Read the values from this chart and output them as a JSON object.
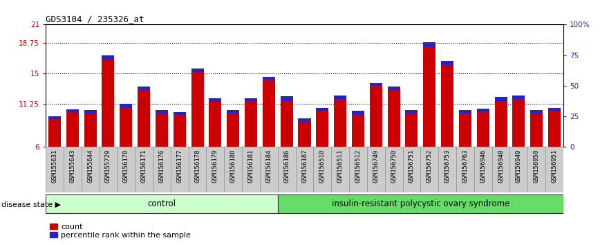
{
  "title": "GDS3104 / 235326_at",
  "samples": [
    "GSM155631",
    "GSM155643",
    "GSM155644",
    "GSM155729",
    "GSM156170",
    "GSM156171",
    "GSM156176",
    "GSM156177",
    "GSM156178",
    "GSM156179",
    "GSM156180",
    "GSM156181",
    "GSM156184",
    "GSM156186",
    "GSM156187",
    "GSM156510",
    "GSM156511",
    "GSM156512",
    "GSM156749",
    "GSM156750",
    "GSM156751",
    "GSM156752",
    "GSM156753",
    "GSM156763",
    "GSM156946",
    "GSM156948",
    "GSM156949",
    "GSM156950",
    "GSM156951"
  ],
  "count_values": [
    9.8,
    10.6,
    10.5,
    17.2,
    11.3,
    13.4,
    10.5,
    10.3,
    15.6,
    12.0,
    10.5,
    12.0,
    14.6,
    12.2,
    9.5,
    10.8,
    12.3,
    10.4,
    13.8,
    13.4,
    10.5,
    18.8,
    16.5,
    10.5,
    10.7,
    12.1,
    12.3,
    10.5,
    10.8
  ],
  "percentile_values": [
    0.35,
    0.35,
    0.35,
    0.5,
    0.45,
    0.35,
    0.35,
    0.35,
    0.45,
    0.35,
    0.35,
    0.35,
    0.35,
    0.45,
    0.35,
    0.35,
    0.45,
    0.35,
    0.35,
    0.45,
    0.35,
    0.45,
    0.45,
    0.35,
    0.45,
    0.45,
    0.45,
    0.35,
    0.35
  ],
  "control_count": 13,
  "disease_count": 16,
  "ymin": 6,
  "ymax": 21,
  "yticks_left": [
    6,
    11.25,
    15,
    18.75,
    21
  ],
  "ytick_labels_left": [
    "6",
    "11.25",
    "15",
    "18.75",
    "21"
  ],
  "yticks_right_vals": [
    6,
    11.25,
    15,
    18.75,
    21
  ],
  "yticks_right": [
    0,
    25,
    50,
    75,
    100
  ],
  "ytick_labels_right": [
    "0",
    "25",
    "50",
    "75",
    "100%"
  ],
  "bar_color_red": "#cc0000",
  "bar_color_blue": "#2222cc",
  "control_bg": "#ccffcc",
  "disease_bg": "#66dd66",
  "xticklabel_bg": "#cccccc",
  "plot_bg": "#ffffff",
  "title_fontsize": 9,
  "tick_fontsize": 7.5,
  "label_fontsize": 6.5,
  "legend_label_count": "count",
  "legend_label_percentile": "percentile rank within the sample",
  "disease_state_label": "disease state",
  "control_label": "control",
  "disease_label": "insulin-resistant polycystic ovary syndrome"
}
